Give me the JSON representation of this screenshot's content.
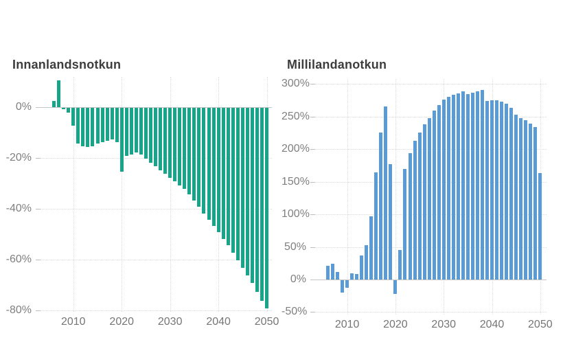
{
  "page": {
    "background": "#ffffff"
  },
  "chart_data": [
    {
      "type": "bar",
      "title": "Innanlandsnotkun",
      "bar_color": "#17A589",
      "x": [
        2006,
        2007,
        2008,
        2009,
        2010,
        2011,
        2012,
        2013,
        2014,
        2015,
        2016,
        2017,
        2018,
        2019,
        2020,
        2021,
        2022,
        2023,
        2024,
        2025,
        2026,
        2027,
        2028,
        2029,
        2030,
        2031,
        2032,
        2033,
        2034,
        2035,
        2036,
        2037,
        2038,
        2039,
        2040,
        2041,
        2042,
        2043,
        2044,
        2045,
        2046,
        2047,
        2048,
        2049,
        2050
      ],
      "values": [
        2.5,
        10.5,
        -0.5,
        -2,
        -7,
        -14,
        -15,
        -15.5,
        -15,
        -14,
        -13.5,
        -13,
        -12.5,
        -13.5,
        -25,
        -19,
        -18.5,
        -17.5,
        -18.5,
        -20,
        -21.5,
        -23,
        -24.5,
        -26,
        -27.5,
        -29,
        -30.5,
        -32,
        -34,
        -36.5,
        -39,
        -41.5,
        -44,
        -46.5,
        -49,
        -51.5,
        -54,
        -57,
        -60,
        -63,
        -66,
        -69,
        -72.5,
        -76,
        -79
      ],
      "unit": "%",
      "ytick_labels": [
        "0%",
        "-20%",
        "-40%",
        "-60%",
        "-80%"
      ],
      "yticks": [
        0,
        -20,
        -40,
        -60,
        -80
      ],
      "xticks": [
        2010,
        2020,
        2030,
        2040,
        2050
      ],
      "ylim": [
        -81,
        12
      ],
      "xlabel": "",
      "ylabel": "",
      "grid": true,
      "legend": null
    },
    {
      "type": "bar",
      "title": "Millilandanotkun",
      "bar_color": "#5B9BD5",
      "x": [
        2006,
        2007,
        2008,
        2009,
        2010,
        2011,
        2012,
        2013,
        2014,
        2015,
        2016,
        2017,
        2018,
        2019,
        2020,
        2021,
        2022,
        2023,
        2024,
        2025,
        2026,
        2027,
        2028,
        2029,
        2030,
        2031,
        2032,
        2033,
        2034,
        2035,
        2036,
        2037,
        2038,
        2039,
        2040,
        2041,
        2042,
        2043,
        2044,
        2045,
        2046,
        2047,
        2048,
        2049,
        2050
      ],
      "values": [
        21,
        24,
        12,
        -19,
        -12,
        10,
        8,
        37,
        53,
        97,
        164,
        225,
        266,
        177,
        -21,
        45,
        170,
        194,
        213,
        226,
        238,
        248,
        259,
        268,
        276,
        280,
        283,
        286,
        289,
        285,
        287,
        289,
        291,
        274,
        275,
        275,
        273,
        270,
        263,
        253,
        248,
        244,
        239,
        234,
        163
      ],
      "unit": "%",
      "ytick_labels": [
        "300%",
        "250%",
        "200%",
        "150%",
        "100%",
        "50%",
        "0%",
        "-50%"
      ],
      "yticks": [
        300,
        250,
        200,
        150,
        100,
        50,
        0,
        -50
      ],
      "xticks": [
        2010,
        2020,
        2030,
        2040,
        2050
      ],
      "ylim": [
        -54,
        307
      ],
      "xlabel": "",
      "ylabel": "",
      "grid": true,
      "legend": null
    }
  ]
}
